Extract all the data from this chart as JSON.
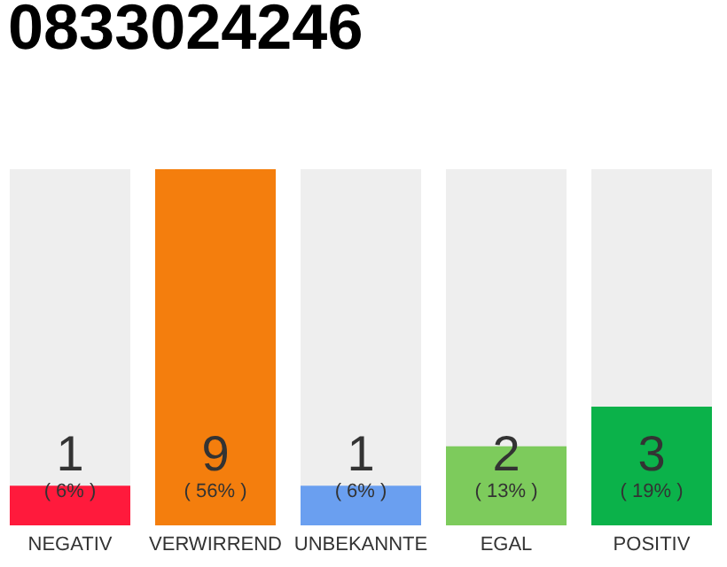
{
  "chart_data": {
    "type": "bar",
    "title": "0833024246",
    "categories": [
      "NEGATIV",
      "VERWIRREND",
      "UNBEKANNTE",
      "EGAL",
      "POSITIV"
    ],
    "values": [
      1,
      9,
      1,
      2,
      3
    ],
    "colors": [
      "#ff1a3c",
      "#f47e0d",
      "#6a9ff0",
      "#7dcb5c",
      "#0bb24a"
    ],
    "ylim": [
      0,
      9
    ],
    "data_labels": true,
    "annotations": [
      "( 6% )",
      "( 56% )",
      "( 6% )",
      "( 13% )",
      "( 19% )"
    ]
  }
}
